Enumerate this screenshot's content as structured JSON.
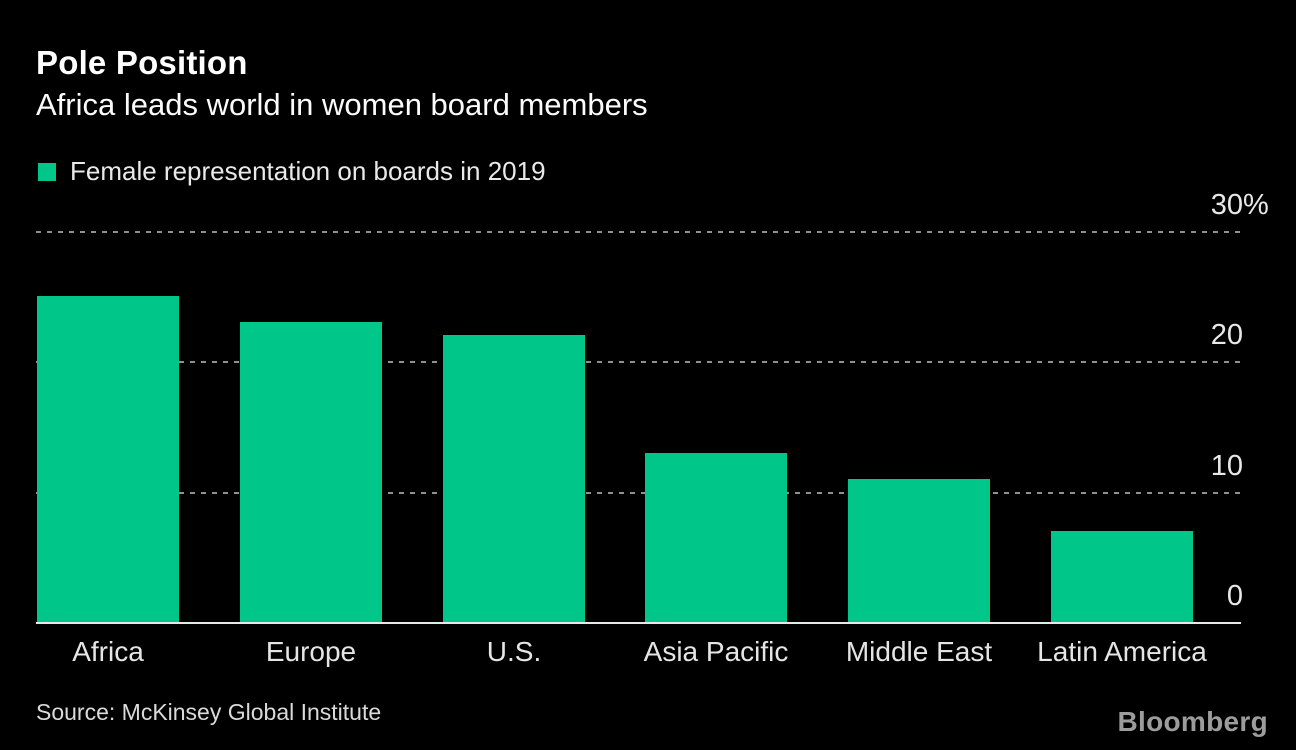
{
  "chart_data": {
    "type": "bar",
    "title": "Pole Position",
    "subtitle": "Africa leads world in women board members",
    "legend_entries": [
      "Female representation on boards in 2019"
    ],
    "categories": [
      "Africa",
      "Europe",
      "U.S.",
      "Asia Pacific",
      "Middle East",
      "Latin America"
    ],
    "values": [
      25,
      23,
      22,
      13,
      11,
      7
    ],
    "unit": "%",
    "xlabel": "",
    "ylabel": "",
    "ylim": [
      0,
      30
    ],
    "yticks": [
      0,
      10,
      20,
      30
    ],
    "ytick_top_suffix": "%",
    "grid": "horizontal-dashed",
    "legend_position": "top-left",
    "colors": {
      "bar": "#00c789",
      "background": "#000000",
      "gridline": "#8f8f8f",
      "axis_line": "#e8e8e8",
      "title_text": "#ffffff",
      "label_text": "#e5e5e5"
    }
  },
  "footer": {
    "source": "Source: McKinsey Global Institute",
    "logo": "Bloomberg"
  }
}
